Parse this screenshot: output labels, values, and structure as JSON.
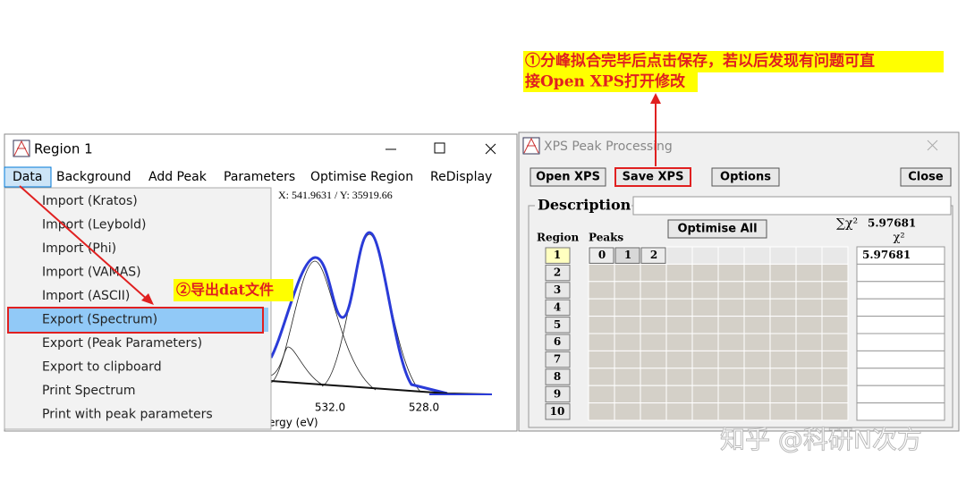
{
  "annotations": {
    "save_note": [
      "①分峰拟合完毕后点击保存，若以后发现有问题可直",
      "接Open XPS打开修改"
    ],
    "export_note": "②导出dat文件"
  },
  "region_window": {
    "title": "Region 1",
    "menu": [
      "Data",
      "Background",
      "Add Peak",
      "Parameters",
      "Optimise Region",
      "ReDisplay"
    ],
    "data_menu": [
      "Import (Kratos)",
      "Import (Leybold)",
      "Import (Phi)",
      "Import (VAMAS)",
      "Import (ASCII)",
      "Export (Spectrum)",
      "Export (Peak Parameters)",
      "Export to clipboard",
      "Print Spectrum",
      "Print with peak parameters"
    ],
    "cursor_readout": "X: 541.9631 / Y: 35919.66",
    "x_tick_labels": [
      "532.0",
      "528.0"
    ],
    "x_axis_label": "ergy (eV)"
  },
  "xps_window": {
    "title": "XPS Peak Processing",
    "buttons": [
      "Open XPS",
      "Save XPS",
      "Options",
      "Close"
    ],
    "description_label": "Description",
    "optimise_all": "Optimise All",
    "sum_chi2_label": "∑χ²",
    "sum_chi2_value": "5.97681",
    "chi2_header": "χ²",
    "region_label": "Region",
    "peaks_label": "Peaks",
    "regions": [
      1,
      2,
      3,
      4,
      5,
      6,
      7,
      8,
      9,
      10
    ],
    "peak_headers": [
      0,
      1,
      2
    ],
    "chi2_values": [
      "5.97681"
    ]
  },
  "watermark": "知乎 @科研N次方"
}
